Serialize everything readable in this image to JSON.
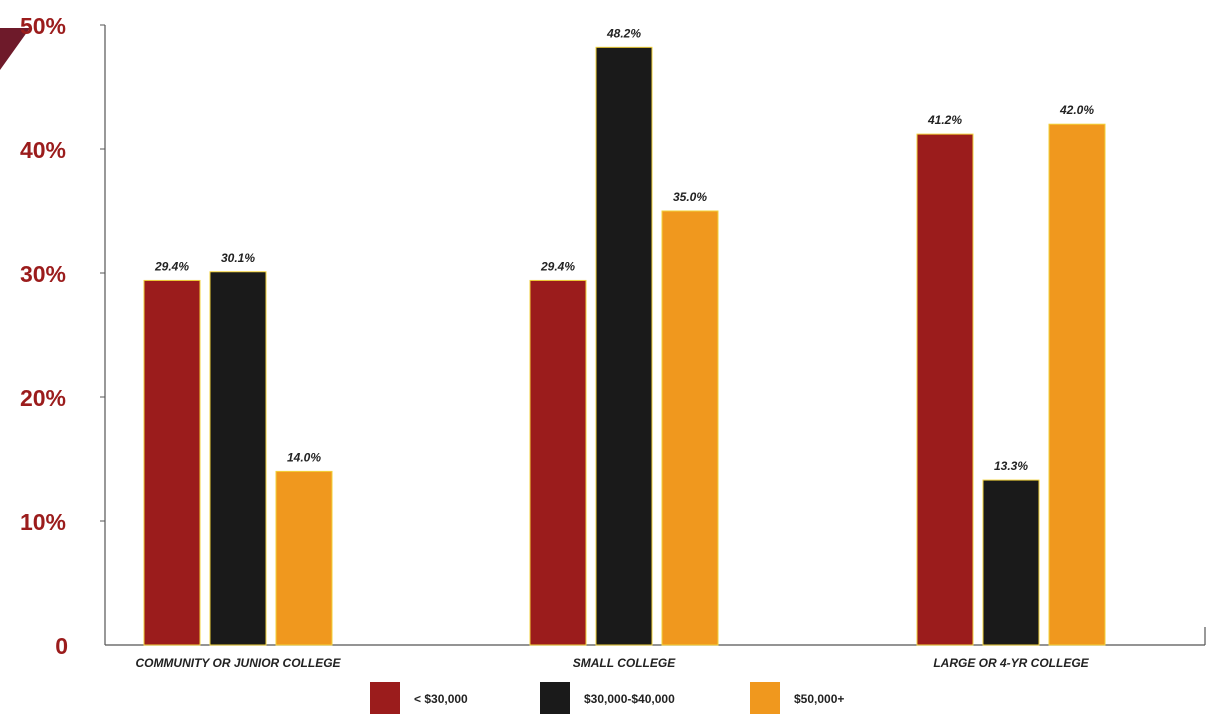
{
  "chart_data": {
    "type": "bar",
    "title": "",
    "xlabel": "",
    "ylabel": "",
    "categories": [
      "COMMUNITY OR JUNIOR COLLEGE",
      "SMALL COLLEGE",
      "LARGE OR 4-YR COLLEGE"
    ],
    "series": [
      {
        "name": "< $30,000",
        "color": "#9b1c1c",
        "values": [
          29.4,
          29.4,
          41.2
        ],
        "labels": [
          "29.4%",
          "29.4%",
          "41.2%"
        ]
      },
      {
        "name": "$30,000-$40,000",
        "color": "#1a1a1a",
        "values": [
          30.1,
          48.2,
          13.3
        ],
        "labels": [
          "30.1%",
          "48.2%",
          "13.3%"
        ]
      },
      {
        "name": "$50,000+",
        "color": "#f0981e",
        "values": [
          14.0,
          35.0,
          42.0
        ],
        "labels": [
          "14.0%",
          "35.0%",
          "42.0%"
        ]
      }
    ],
    "ylim": [
      0,
      50
    ],
    "yticks": [
      0,
      10,
      20,
      30,
      40,
      50
    ],
    "ytick_labels": [
      "0",
      "10%",
      "20%",
      "30%",
      "40%",
      "50%"
    ],
    "grid": false,
    "legend_position": "bottom-center",
    "tick_label_color": "#9b1c1c"
  }
}
